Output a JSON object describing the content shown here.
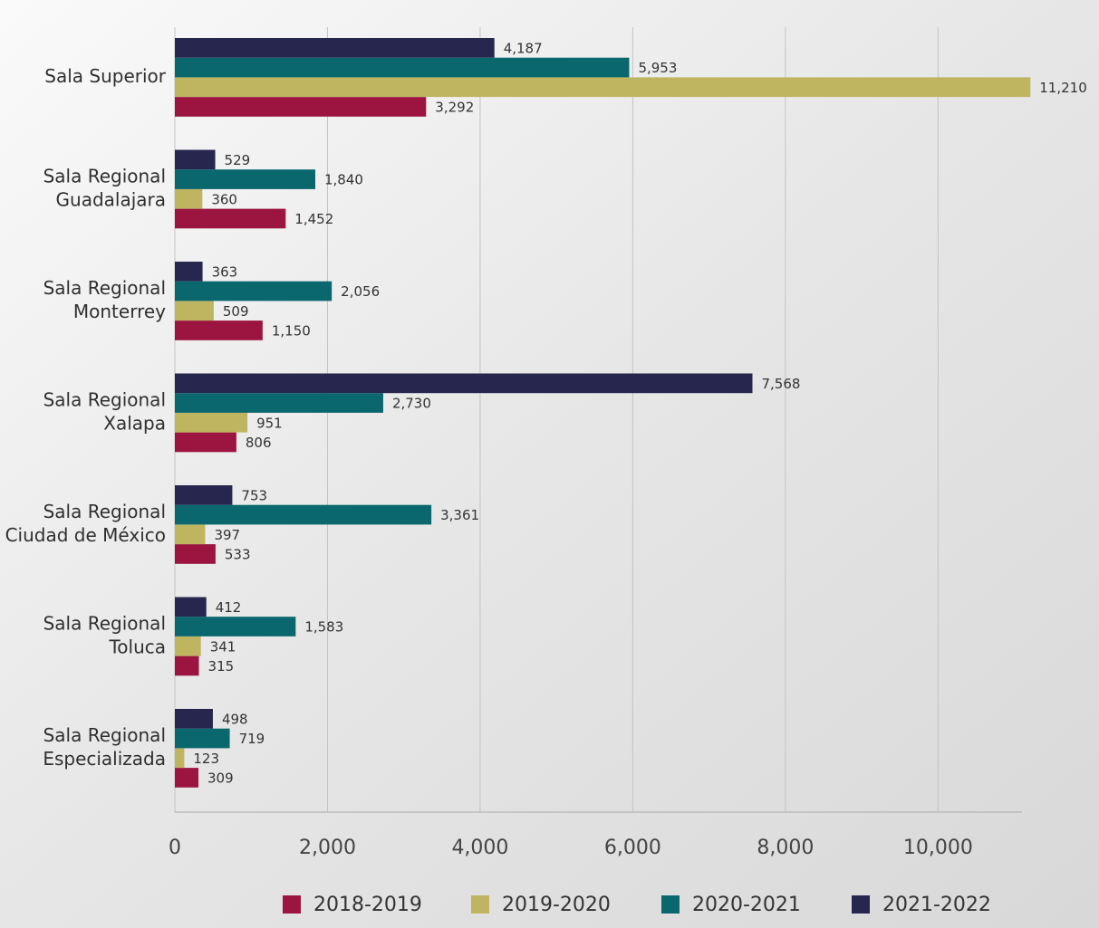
{
  "chart_data": {
    "type": "bar",
    "orientation": "horizontal",
    "categories": [
      [
        "Sala Superior"
      ],
      [
        "Sala Regional",
        "Guadalajara"
      ],
      [
        "Sala Regional",
        "Monterrey"
      ],
      [
        "Sala Regional",
        "Xalapa"
      ],
      [
        "Sala Regional",
        "Ciudad de México"
      ],
      [
        "Sala Regional",
        "Toluca"
      ],
      [
        "Sala Regional",
        "Especializada"
      ]
    ],
    "series": [
      {
        "name": "2018-2019",
        "color": "#9b1540",
        "values": [
          3292,
          1452,
          1150,
          806,
          533,
          315,
          309
        ],
        "value_labels": [
          "3,292",
          "1,452",
          "1,150",
          "806",
          "533",
          "315",
          "309"
        ]
      },
      {
        "name": "2019-2020",
        "color": "#bfb560",
        "values": [
          11210,
          360,
          509,
          951,
          397,
          341,
          123
        ],
        "value_labels": [
          "11,210",
          "360",
          "509",
          "951",
          "397",
          "341",
          "123"
        ]
      },
      {
        "name": "2020-2021",
        "color": "#0b676e",
        "values": [
          5953,
          1840,
          2056,
          2730,
          3361,
          1583,
          719
        ],
        "value_labels": [
          "5,953",
          "1,840",
          "2,056",
          "2,730",
          "3,361",
          "1,583",
          "719"
        ]
      },
      {
        "name": "2021-2022",
        "color": "#27264f",
        "values": [
          4187,
          529,
          363,
          7568,
          753,
          412,
          498
        ],
        "value_labels": [
          "4,187",
          "529",
          "363",
          "7,568",
          "753",
          "412",
          "498"
        ]
      }
    ],
    "xlim": [
      0,
      11100
    ],
    "xticks": [
      0,
      {
        "value": 2000,
        "label": "2,000"
      },
      {
        "value": 4000,
        "label": "4,000"
      },
      {
        "value": 6000,
        "label": "6,000"
      },
      {
        "value": 8000,
        "label": "8,000"
      },
      {
        "value": 10000,
        "label": "10,000"
      }
    ],
    "grid": true,
    "legend": "bottom"
  }
}
